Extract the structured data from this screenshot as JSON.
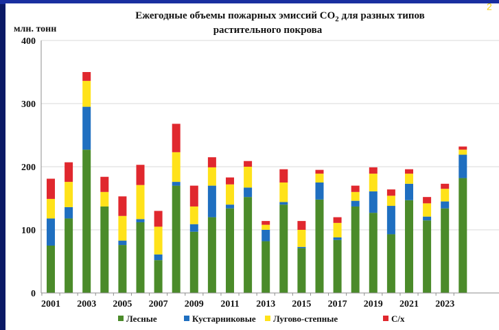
{
  "page": {
    "slide_number": "2"
  },
  "chart_data": {
    "type": "bar",
    "stacked": true,
    "title_line1": "Ежегодные объемы пожарных эмиссий CO",
    "title_sub": "2",
    "title_line1_tail": " для разных типов",
    "title_line2": "растительного покрова",
    "ylabel": "млн. тонн",
    "ylim": [
      0,
      400
    ],
    "yticks": [
      0,
      100,
      200,
      300,
      400
    ],
    "grid": true,
    "legend_position": "bottom",
    "categories": [
      "2001",
      "2002",
      "2003",
      "2004",
      "2005",
      "2006",
      "2007",
      "2008",
      "2009",
      "2010",
      "2011",
      "2012",
      "2013",
      "2014",
      "2015",
      "2016",
      "2017",
      "2018",
      "2019",
      "2020",
      "2021",
      "2022",
      "2023",
      "2024"
    ],
    "xtick_labels": [
      "2001",
      "2003",
      "2005",
      "2007",
      "2009",
      "2011",
      "2013",
      "2015",
      "2017",
      "2019",
      "2021",
      "2023"
    ],
    "series": [
      {
        "name": "Лесные",
        "color": "#4b8b2a",
        "values": [
          75,
          118,
          227,
          137,
          76,
          112,
          52,
          170,
          97,
          120,
          134,
          152,
          82,
          140,
          71,
          148,
          84,
          137,
          127,
          93,
          147,
          115,
          134,
          182
        ]
      },
      {
        "name": "Кустарниковые",
        "color": "#1f6fc0",
        "values": [
          43,
          18,
          68,
          0,
          7,
          5,
          9,
          6,
          12,
          50,
          6,
          15,
          18,
          4,
          2,
          27,
          4,
          9,
          34,
          45,
          26,
          6,
          11,
          37
        ]
      },
      {
        "name": "Лугово-степные",
        "color": "#ffe21a",
        "values": [
          31,
          40,
          41,
          23,
          39,
          54,
          44,
          47,
          28,
          29,
          32,
          33,
          8,
          31,
          27,
          14,
          23,
          14,
          28,
          16,
          16,
          21,
          20,
          8
        ]
      },
      {
        "name": "С/х",
        "color": "#e0282e",
        "values": [
          32,
          31,
          14,
          24,
          31,
          32,
          25,
          45,
          33,
          16,
          11,
          9,
          6,
          21,
          14,
          6,
          9,
          10,
          10,
          10,
          7,
          10,
          8,
          5
        ]
      }
    ]
  }
}
